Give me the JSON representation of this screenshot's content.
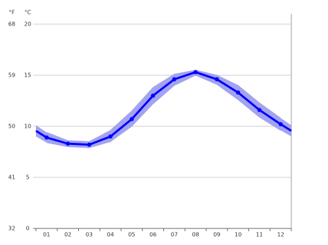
{
  "chart_data": {
    "type": "line",
    "y_label": "°C",
    "y2_label": "°F",
    "categories": [
      "01",
      "02",
      "03",
      "04",
      "05",
      "06",
      "07",
      "08",
      "09",
      "10",
      "11",
      "12"
    ],
    "values": [
      8.9,
      8.3,
      8.2,
      9.0,
      10.7,
      13.0,
      14.6,
      15.3,
      14.6,
      13.3,
      11.6,
      10.2
    ],
    "low": [
      8.4,
      8.0,
      7.9,
      8.5,
      10.0,
      12.2,
      14.0,
      15.0,
      14.1,
      12.6,
      10.9,
      9.6
    ],
    "high": [
      9.4,
      8.6,
      8.5,
      9.6,
      11.5,
      13.8,
      15.1,
      15.5,
      15.0,
      14.0,
      12.3,
      10.8
    ],
    "color": "#0000ff",
    "band_color": "#a3a3ee",
    "ylim": [
      0,
      20
    ],
    "yticks": [
      0,
      5,
      10,
      15,
      20
    ],
    "y2lim": [
      32,
      68
    ],
    "y2ticks": [
      32,
      41,
      50,
      59,
      68
    ],
    "grid": true
  }
}
